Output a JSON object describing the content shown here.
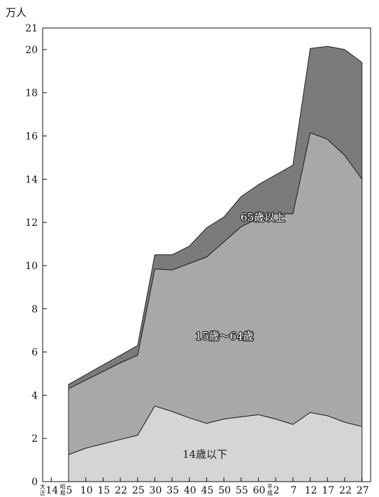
{
  "chart_data": {
    "type": "area",
    "stacked": true,
    "y_unit_label": "万人",
    "ylim": [
      0,
      21
    ],
    "y_ticks": [
      0,
      2,
      4,
      6,
      8,
      10,
      12,
      14,
      16,
      18,
      20,
      21
    ],
    "categories": [
      "14",
      "5",
      "10",
      "15",
      "22",
      "25",
      "30",
      "35",
      "40",
      "45",
      "50",
      "55",
      "60",
      "2",
      "7",
      "12",
      "17",
      "22",
      "27"
    ],
    "era_marks": [
      {
        "index": 0,
        "top": "大",
        "bottom": "正"
      },
      {
        "index": 1,
        "top": "昭",
        "bottom": "和"
      },
      {
        "index": 13,
        "top": "平",
        "bottom": "成"
      }
    ],
    "series": [
      {
        "name": "14歳以下",
        "color": "#d5d5d7",
        "values": [
          null,
          1.25,
          1.55,
          1.75,
          1.95,
          2.15,
          3.5,
          3.25,
          2.95,
          2.7,
          2.9,
          3.0,
          3.1,
          2.9,
          2.65,
          3.2,
          3.05,
          2.75,
          2.55
        ]
      },
      {
        "name": "15歳～64歳",
        "color": "#a8a8aa",
        "values": [
          null,
          3.05,
          3.15,
          3.35,
          3.55,
          3.7,
          6.35,
          6.55,
          7.15,
          7.7,
          8.2,
          8.8,
          9.1,
          9.5,
          9.75,
          12.95,
          12.8,
          12.35,
          11.45
        ]
      },
      {
        "name": "65歳以上",
        "color": "#7b7b7d",
        "values": [
          null,
          0.2,
          0.25,
          0.3,
          0.35,
          0.45,
          0.65,
          0.7,
          0.8,
          1.35,
          1.15,
          1.4,
          1.55,
          1.8,
          2.25,
          3.9,
          4.3,
          4.9,
          5.4
        ]
      }
    ]
  }
}
